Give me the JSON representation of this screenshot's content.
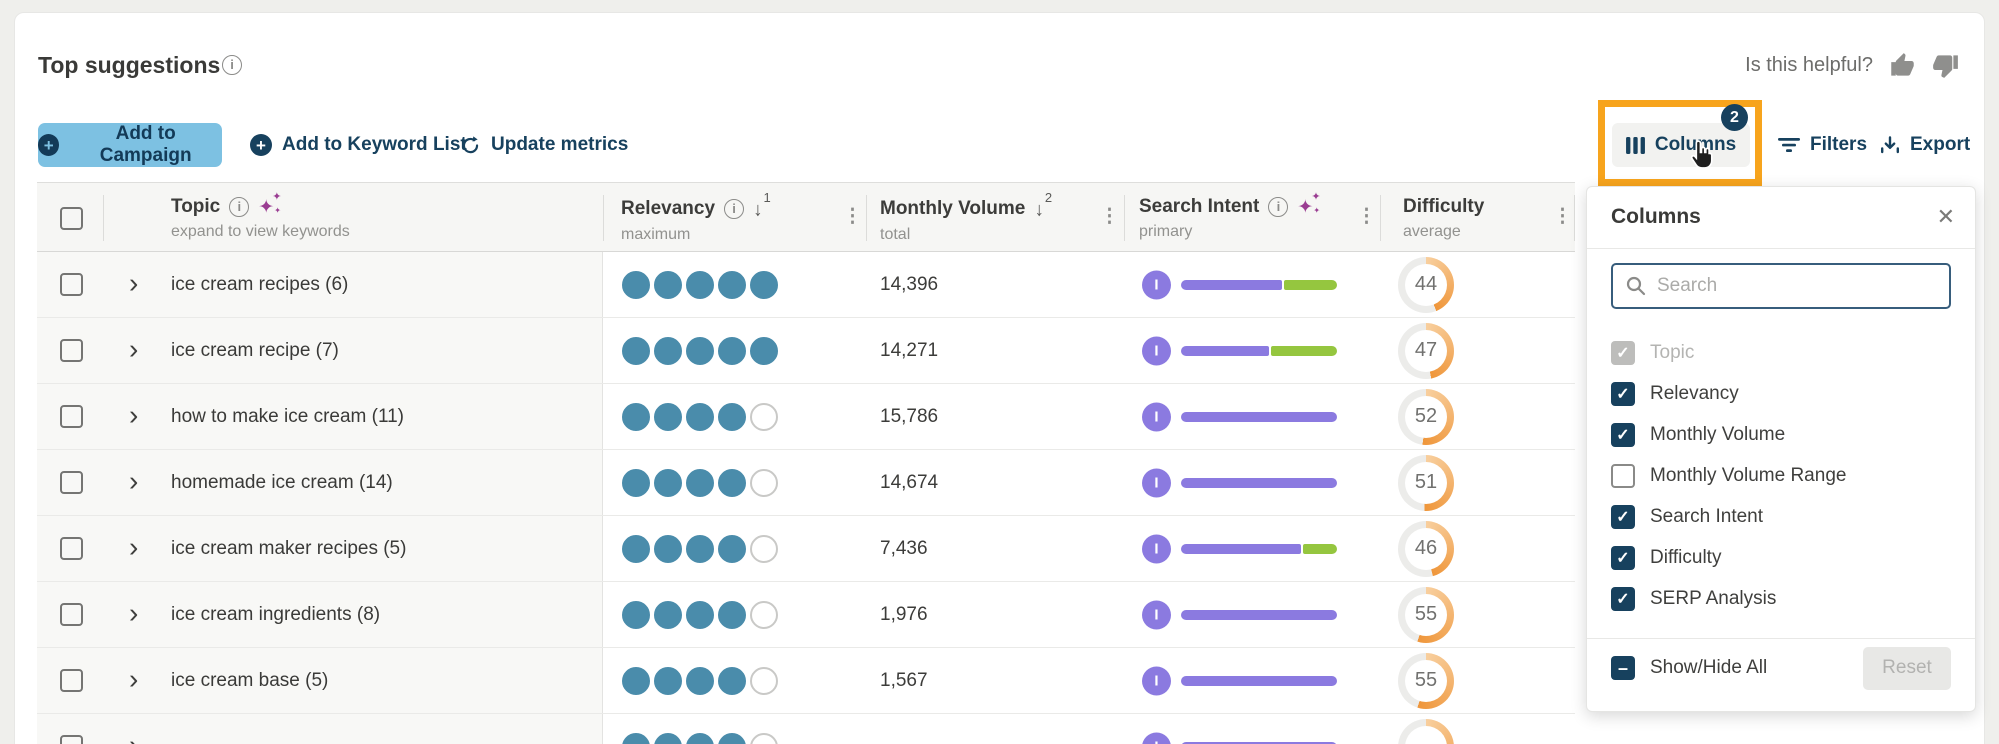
{
  "page": {
    "title": "Top suggestions",
    "helpful_prompt": "Is this helpful?"
  },
  "toolbar": {
    "add_to_campaign": "Add to Campaign",
    "add_to_keyword_list": "Add to Keyword List",
    "update_metrics": "Update metrics",
    "columns_label": "Columns",
    "columns_badge": "2",
    "filters_label": "Filters",
    "export_label": "Export"
  },
  "table": {
    "headers": {
      "topic": {
        "label": "Topic",
        "sub": "expand to view keywords"
      },
      "relevancy": {
        "label": "Relevancy",
        "sub": "maximum",
        "sort_rank": "1"
      },
      "monthly_volume": {
        "label": "Monthly Volume",
        "sub": "total",
        "sort_rank": "2"
      },
      "search_intent": {
        "label": "Search Intent",
        "sub": "primary"
      },
      "difficulty": {
        "label": "Difficulty",
        "sub": "average"
      }
    },
    "rows": [
      {
        "topic": "ice cream recipes (6)",
        "relevancy": 5,
        "volume": "14,396",
        "intent": {
          "primary": "I",
          "purple_pct": 66
        },
        "difficulty": 44
      },
      {
        "topic": "ice cream recipe (7)",
        "relevancy": 5,
        "volume": "14,271",
        "intent": {
          "primary": "I",
          "purple_pct": 58
        },
        "difficulty": 47
      },
      {
        "topic": "how to make ice cream (11)",
        "relevancy": 4,
        "volume": "15,786",
        "intent": {
          "primary": "I",
          "purple_pct": 100
        },
        "difficulty": 52
      },
      {
        "topic": "homemade ice cream (14)",
        "relevancy": 4,
        "volume": "14,674",
        "intent": {
          "primary": "I",
          "purple_pct": 100
        },
        "difficulty": 51
      },
      {
        "topic": "ice cream maker recipes (5)",
        "relevancy": 4,
        "volume": "7,436",
        "intent": {
          "primary": "I",
          "purple_pct": 78
        },
        "difficulty": 46
      },
      {
        "topic": "ice cream ingredients (8)",
        "relevancy": 4,
        "volume": "1,976",
        "intent": {
          "primary": "I",
          "purple_pct": 100
        },
        "difficulty": 55
      },
      {
        "topic": "ice cream base (5)",
        "relevancy": 4,
        "volume": "1,567",
        "intent": {
          "primary": "I",
          "purple_pct": 100
        },
        "difficulty": 55
      },
      {
        "topic": "",
        "partial": true,
        "relevancy": 4,
        "volume": "",
        "intent": {
          "primary": "I",
          "purple_pct": 100
        },
        "difficulty": null
      }
    ]
  },
  "columns_panel": {
    "title": "Columns",
    "search_placeholder": "Search",
    "options": [
      {
        "label": "Topic",
        "state": "checked",
        "disabled": true
      },
      {
        "label": "Relevancy",
        "state": "checked"
      },
      {
        "label": "Monthly Volume",
        "state": "checked"
      },
      {
        "label": "Monthly Volume Range",
        "state": "unchecked"
      },
      {
        "label": "Search Intent",
        "state": "checked"
      },
      {
        "label": "Difficulty",
        "state": "checked"
      },
      {
        "label": "SERP Analysis",
        "state": "checked"
      }
    ],
    "show_hide_all": "Show/Hide All",
    "show_hide_state": "indeterminate",
    "reset_label": "Reset"
  },
  "colors": {
    "brand_navy": "#17415e",
    "button_blue": "#7dc1e2",
    "relevancy_teal": "#4a8cab",
    "intent_purple": "#8b7ae0",
    "intent_green": "#95c63f",
    "difficulty_orange": "#ef963a",
    "highlight_orange": "#f7a41d"
  }
}
